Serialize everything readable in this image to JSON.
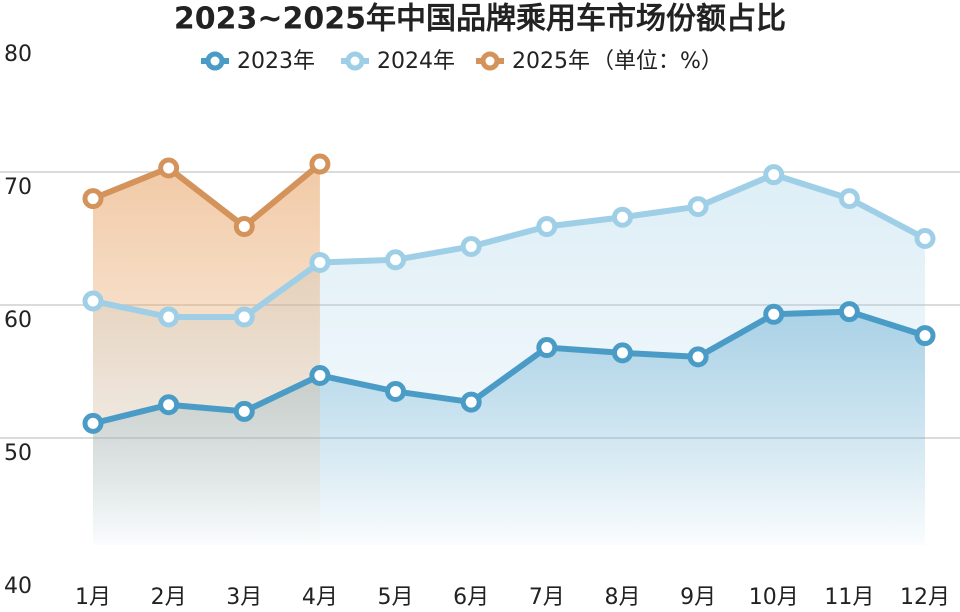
{
  "chart_data": {
    "type": "line",
    "title": "2023~2025年中国品牌乘用车市场份额占比",
    "unit_note": "（单位：%）",
    "categories": [
      "1月",
      "2月",
      "3月",
      "4月",
      "5月",
      "6月",
      "7月",
      "8月",
      "9月",
      "10月",
      "11月",
      "12月"
    ],
    "series": [
      {
        "name": "2023年",
        "color": "#4a9cc7",
        "values": [
          51.1,
          52.5,
          52.0,
          54.7,
          53.5,
          52.7,
          56.8,
          56.4,
          56.1,
          59.3,
          59.5,
          57.7
        ]
      },
      {
        "name": "2024年",
        "color": "#9fcfe6",
        "values": [
          60.3,
          59.1,
          59.1,
          63.2,
          63.4,
          64.4,
          65.9,
          66.6,
          67.4,
          69.8,
          68.0,
          65.0
        ]
      },
      {
        "name": "2025年",
        "color": "#d4935a",
        "values": [
          68.0,
          70.3,
          65.9,
          70.6,
          null,
          null,
          null,
          null,
          null,
          null,
          null,
          null
        ]
      }
    ],
    "ylim": [
      40,
      80
    ],
    "yticks": [
      40,
      50,
      60,
      70,
      80
    ],
    "grid": true
  }
}
